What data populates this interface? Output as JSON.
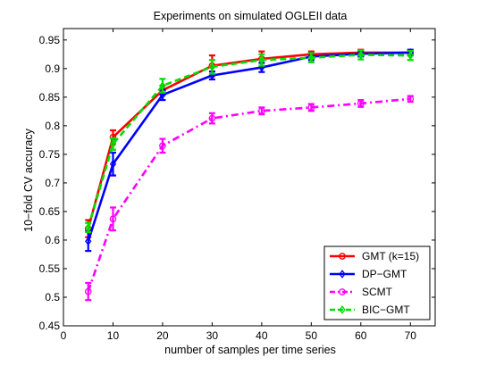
{
  "chart_data": {
    "type": "line",
    "title": "Experiments on simulated OGLEII data",
    "xlabel": "number of samples per time series",
    "ylabel": "10−fold CV accuracy",
    "xlim": [
      0,
      75
    ],
    "ylim": [
      0.45,
      0.97
    ],
    "xticks": [
      0,
      10,
      20,
      30,
      40,
      50,
      60,
      70
    ],
    "yticks": [
      0.45,
      0.5,
      0.55,
      0.6,
      0.65,
      0.7,
      0.75,
      0.8,
      0.85,
      0.9,
      0.95
    ],
    "xtick_labels": [
      "0",
      "10",
      "20",
      "30",
      "40",
      "50",
      "60",
      "70"
    ],
    "ytick_labels": [
      "0.45",
      "0.5",
      "0.55",
      "0.6",
      "0.65",
      "0.7",
      "0.75",
      "0.8",
      "0.85",
      "0.9",
      "0.95"
    ],
    "grid": false,
    "legend_position": "bottom-right",
    "x": [
      5,
      10,
      20,
      30,
      40,
      50,
      60,
      70
    ],
    "series": [
      {
        "name": "GMT (k=15)",
        "color": "#ff0000",
        "line_style": "solid",
        "marker": "circle",
        "values": [
          0.62,
          0.78,
          0.862,
          0.905,
          0.917,
          0.925,
          0.928,
          0.928
        ],
        "errors": [
          0.015,
          0.012,
          0.008,
          0.018,
          0.013,
          0.005,
          0.005,
          0.004
        ]
      },
      {
        "name": "DP−GMT",
        "color": "#0000ff",
        "line_style": "solid",
        "marker": "diamond",
        "values": [
          0.598,
          0.733,
          0.854,
          0.888,
          0.902,
          0.921,
          0.926,
          0.928
        ],
        "errors": [
          0.017,
          0.02,
          0.009,
          0.007,
          0.008,
          0.006,
          0.005,
          0.005
        ]
      },
      {
        "name": "SCMT",
        "color": "#ff00ff",
        "line_style": "dashdot",
        "marker": "circle",
        "values": [
          0.51,
          0.637,
          0.765,
          0.813,
          0.826,
          0.832,
          0.839,
          0.847
        ],
        "errors": [
          0.015,
          0.02,
          0.012,
          0.009,
          0.006,
          0.006,
          0.006,
          0.005
        ]
      },
      {
        "name": "BIC−GMT",
        "color": "#00dd00",
        "line_style": "dashed",
        "marker": "diamond",
        "values": [
          0.622,
          0.768,
          0.87,
          0.903,
          0.915,
          0.919,
          0.924,
          0.923
        ],
        "errors": [
          0.008,
          0.01,
          0.012,
          0.012,
          0.01,
          0.008,
          0.008,
          0.008
        ]
      }
    ]
  }
}
